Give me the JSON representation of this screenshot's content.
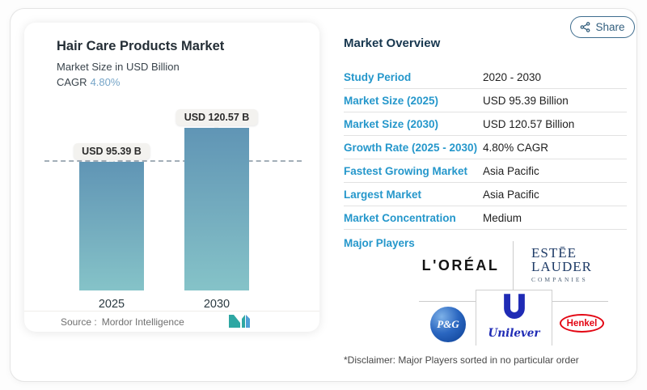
{
  "share_button": {
    "label": "Share"
  },
  "chart_panel": {
    "title": "Hair Care Products Market",
    "subtitle": "Market Size in USD Billion",
    "cagr_label": "CAGR",
    "cagr_value": "4.80%",
    "source_label": "Source :",
    "source_value": "Mordor Intelligence"
  },
  "chart_data": {
    "type": "bar",
    "categories": [
      "2025",
      "2030"
    ],
    "values": [
      95.39,
      120.57
    ],
    "unit": "USD Billion",
    "bar_labels": [
      "USD 95.39 B",
      "USD 120.57 B"
    ],
    "title": "Hair Care Products Market",
    "ylabel": "Market Size in USD Billion",
    "cagr": "4.80%",
    "baseline_dashed_at": 95.39,
    "bar_color_top": "#6095b5",
    "bar_color_bottom": "#85c3c8",
    "legend": "none",
    "grid": "off"
  },
  "overview": {
    "heading": "Market Overview",
    "rows": [
      {
        "label": "Study Period",
        "value": "2020 - 2030"
      },
      {
        "label": "Market Size (2025)",
        "value": "USD 95.39 Billion"
      },
      {
        "label": "Market Size (2030)",
        "value": "USD 120.57 Billion"
      },
      {
        "label": "Growth Rate (2025 - 2030)",
        "value": "4.80% CAGR"
      },
      {
        "label": "Fastest Growing Market",
        "value": "Asia Pacific"
      },
      {
        "label": "Largest Market",
        "value": "Asia Pacific"
      },
      {
        "label": "Market Concentration",
        "value": "Medium"
      }
    ],
    "major_players_label": "Major Players",
    "major_players": [
      "L'Oréal",
      "Estée Lauder Companies",
      "P&G",
      "Unilever",
      "Henkel"
    ],
    "disclaimer": "*Disclaimer: Major Players sorted in no particular order"
  },
  "logos": {
    "loreal": "L'ORÉAL",
    "estee_line1": "ESTĒE",
    "estee_line2": "LAUDER",
    "estee_line3": "COMPANIES",
    "pg": "P&G",
    "unilever": "Unilever",
    "henkel": "Henkel"
  }
}
